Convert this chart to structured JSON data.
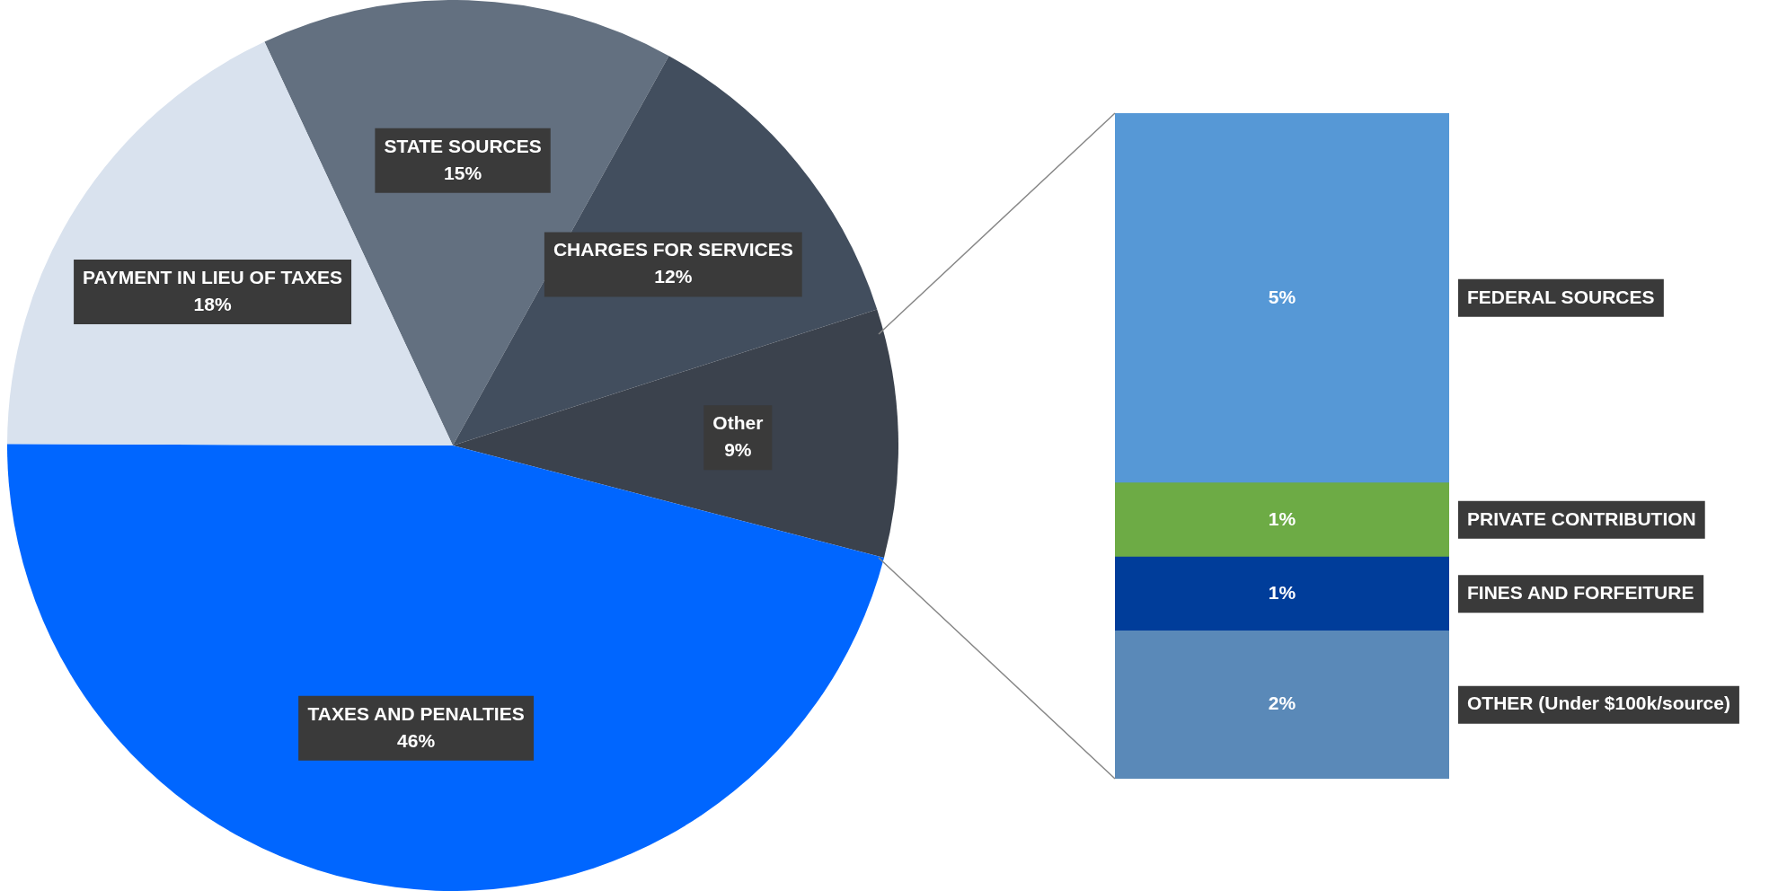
{
  "chart_data": [
    {
      "type": "pie",
      "categories": [
        "STATE SOURCES",
        "CHARGES FOR SERVICES",
        "Other",
        "TAXES AND PENALTIES",
        "PAYMENT IN LIEU OF TAXES"
      ],
      "values": [
        15,
        12,
        9,
        46,
        18
      ],
      "colors": [
        "#637080",
        "#424e5e",
        "#3b424d",
        "#0066ff",
        "#d9e2ee"
      ],
      "value_labels": [
        "15%",
        "12%",
        "9%",
        "46%",
        "18%"
      ]
    },
    {
      "type": "bar",
      "stacked": true,
      "categories": [
        null
      ],
      "series": [
        {
          "name": "OTHER (Under $100k/source)",
          "color": "#5a89b8",
          "values": [
            2
          ],
          "value_labels": [
            "2%"
          ]
        },
        {
          "name": "FINES AND FORFEITURE",
          "color": "#003d9a",
          "values": [
            1
          ],
          "value_labels": [
            "1%"
          ]
        },
        {
          "name": "PRIVATE CONTRIBUTION",
          "color": "#6dab45",
          "values": [
            1
          ],
          "value_labels": [
            "1%"
          ]
        },
        {
          "name": "FEDERAL SOURCES",
          "color": "#5698d6",
          "values": [
            5
          ],
          "value_labels": [
            "5%"
          ]
        }
      ]
    }
  ]
}
